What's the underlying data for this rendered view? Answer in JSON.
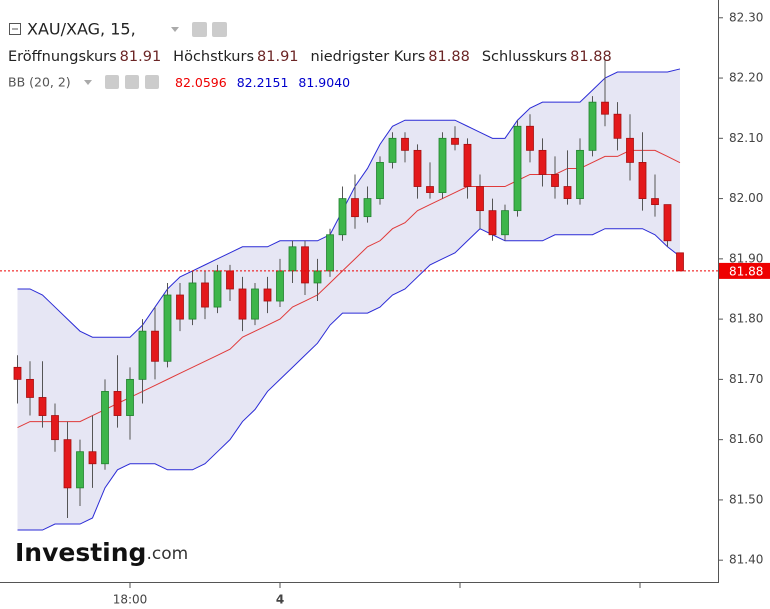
{
  "chart_data": {
    "type": "candlestick",
    "title": "XAU/XAG, 15,",
    "ohlc_names": [
      "Eröffnungskurs",
      "Höchstkurs",
      "niedrigster Kurs",
      "Schlusskurs"
    ],
    "indicator_name": "BB (20, 2)",
    "watermark": [
      "Investing",
      ".com"
    ],
    "up_color": "#3db54a",
    "down_color": "#e3191b",
    "open": [
      81.72,
      81.7,
      81.67,
      81.64,
      81.6,
      81.52,
      81.58,
      81.56,
      81.68,
      81.64,
      81.7,
      81.78,
      81.73,
      81.84,
      81.8,
      81.86,
      81.82,
      81.88,
      81.85,
      81.8,
      81.85,
      81.83,
      81.88,
      81.92,
      81.86,
      81.88,
      81.94,
      82.0,
      81.97,
      82.0,
      82.06,
      82.1,
      82.08,
      82.02,
      82.01,
      82.1,
      82.09,
      82.02,
      81.98,
      81.94,
      81.98,
      82.12,
      82.08,
      82.04,
      82.02,
      82.0,
      82.08,
      82.16,
      82.14,
      82.1,
      82.06,
      82.0,
      81.99,
      81.91
    ],
    "high": [
      81.74,
      81.73,
      81.73,
      81.66,
      81.63,
      81.6,
      81.64,
      81.7,
      81.74,
      81.72,
      81.8,
      81.82,
      81.86,
      81.86,
      81.88,
      81.88,
      81.89,
      81.89,
      81.87,
      81.86,
      81.87,
      81.9,
      81.93,
      81.93,
      81.9,
      81.95,
      82.02,
      82.04,
      82.02,
      82.07,
      82.11,
      82.11,
      82.09,
      82.06,
      82.11,
      82.12,
      82.1,
      82.04,
      82.0,
      81.99,
      82.13,
      82.14,
      82.1,
      82.07,
      82.08,
      82.1,
      82.17,
      82.23,
      82.16,
      82.14,
      82.11,
      82.04,
      81.99,
      81.91
    ],
    "low": [
      81.66,
      81.64,
      81.62,
      81.58,
      81.47,
      81.49,
      81.52,
      81.55,
      81.62,
      81.6,
      81.66,
      81.7,
      81.72,
      81.78,
      81.79,
      81.8,
      81.81,
      81.83,
      81.78,
      81.79,
      81.81,
      81.82,
      81.86,
      81.84,
      81.83,
      81.87,
      81.93,
      81.95,
      81.96,
      81.99,
      82.05,
      82.06,
      82.0,
      82.0,
      82.0,
      82.08,
      82.0,
      81.95,
      81.93,
      81.93,
      81.97,
      82.06,
      82.02,
      82.0,
      81.99,
      81.99,
      82.07,
      82.12,
      82.08,
      82.03,
      81.98,
      81.97,
      81.92,
      81.88
    ],
    "close": [
      81.7,
      81.67,
      81.64,
      81.6,
      81.52,
      81.58,
      81.56,
      81.68,
      81.64,
      81.7,
      81.78,
      81.73,
      81.84,
      81.8,
      81.86,
      81.82,
      81.88,
      81.85,
      81.8,
      81.85,
      81.83,
      81.88,
      81.92,
      81.86,
      81.88,
      81.94,
      82.0,
      81.97,
      82.0,
      82.06,
      82.1,
      82.08,
      82.02,
      82.01,
      82.1,
      82.09,
      82.02,
      81.98,
      81.94,
      81.98,
      82.12,
      82.08,
      82.04,
      82.02,
      82.0,
      82.08,
      82.16,
      82.14,
      82.1,
      82.06,
      82.0,
      81.99,
      81.93,
      81.88
    ],
    "series": [
      {
        "color": "#e03a3a",
        "legend_label": "82.0596",
        "values": [
          81.62,
          81.63,
          81.63,
          81.63,
          81.63,
          81.63,
          81.64,
          81.65,
          81.66,
          81.67,
          81.68,
          81.69,
          81.7,
          81.71,
          81.72,
          81.73,
          81.74,
          81.75,
          81.77,
          81.78,
          81.79,
          81.8,
          81.82,
          81.83,
          81.84,
          81.86,
          81.88,
          81.9,
          81.92,
          81.93,
          81.95,
          81.96,
          81.98,
          81.99,
          82.0,
          82.01,
          82.02,
          82.02,
          82.02,
          82.02,
          82.03,
          82.04,
          82.04,
          82.04,
          82.05,
          82.05,
          82.06,
          82.07,
          82.07,
          82.08,
          82.08,
          82.08,
          82.07,
          82.0596
        ]
      },
      {
        "color": "#2b2bd6",
        "legend_label": "82.2151",
        "values": [
          81.85,
          81.85,
          81.84,
          81.82,
          81.8,
          81.78,
          81.77,
          81.77,
          81.77,
          81.77,
          81.79,
          81.82,
          81.85,
          81.87,
          81.88,
          81.89,
          81.9,
          81.91,
          81.92,
          81.92,
          81.92,
          81.93,
          81.93,
          81.93,
          81.93,
          81.94,
          81.98,
          82.02,
          82.05,
          82.09,
          82.12,
          82.13,
          82.13,
          82.13,
          82.13,
          82.13,
          82.12,
          82.11,
          82.1,
          82.1,
          82.13,
          82.15,
          82.16,
          82.16,
          82.16,
          82.16,
          82.18,
          82.2,
          82.21,
          82.21,
          82.21,
          82.21,
          82.21,
          82.2151
        ]
      },
      {
        "color": "#2b2bd6",
        "legend_label": "81.9040",
        "values": [
          81.45,
          81.45,
          81.45,
          81.46,
          81.46,
          81.46,
          81.47,
          81.52,
          81.55,
          81.56,
          81.56,
          81.56,
          81.55,
          81.55,
          81.55,
          81.56,
          81.58,
          81.6,
          81.63,
          81.65,
          81.68,
          81.7,
          81.72,
          81.74,
          81.76,
          81.79,
          81.81,
          81.81,
          81.81,
          81.82,
          81.84,
          81.85,
          81.87,
          81.89,
          81.9,
          81.91,
          81.93,
          81.95,
          81.94,
          81.93,
          81.93,
          81.93,
          81.93,
          81.94,
          81.94,
          81.94,
          81.94,
          81.95,
          81.95,
          81.95,
          81.95,
          81.94,
          81.92,
          81.904
        ]
      }
    ],
    "band_fill": "#e6e6f4",
    "ylim": [
      81.3638,
      82.3295
    ],
    "yticks": [
      {
        "value": 81.4,
        "label": "81.40"
      },
      {
        "value": 81.5,
        "label": "81.50"
      },
      {
        "value": 81.6,
        "label": "81.60"
      },
      {
        "value": 81.7,
        "label": "81.70"
      },
      {
        "value": 81.8,
        "label": "81.80"
      },
      {
        "value": 81.9,
        "label": "81.90"
      },
      {
        "value": 82.0,
        "label": "82.00"
      },
      {
        "value": 82.1,
        "label": "82.10"
      },
      {
        "value": 82.2,
        "label": "82.20"
      },
      {
        "value": 82.3,
        "label": "82.30"
      }
    ],
    "xticks": [
      {
        "value": 9,
        "label": "18:00"
      },
      {
        "value": 21,
        "label": "4"
      },
      {
        "value": 35.4,
        "label": null
      },
      {
        "value": 49.8,
        "label": null
      }
    ]
  }
}
